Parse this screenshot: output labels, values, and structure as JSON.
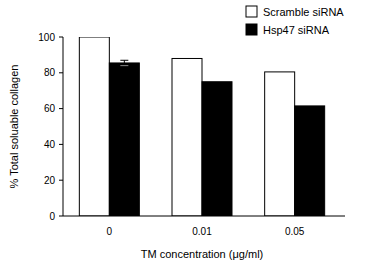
{
  "chart_data": {
    "type": "bar",
    "x_label": "TM concentration (μg/ml)",
    "y_label": "% Total soluable collagen",
    "categories": [
      "0",
      "0.01",
      "0.05"
    ],
    "series": [
      {
        "name": "Scramble siRNA",
        "color": "#ffffff",
        "values": [
          100,
          88,
          80.5
        ]
      },
      {
        "name": "Hsp47 siRNA",
        "color": "#000000",
        "values": [
          85.5,
          75,
          61.5
        ],
        "errors": [
          1.5,
          null,
          null
        ]
      }
    ],
    "ylim": [
      0,
      100
    ],
    "yticks": [
      0,
      20,
      40,
      60,
      80,
      100
    ],
    "legend": "upper right"
  }
}
